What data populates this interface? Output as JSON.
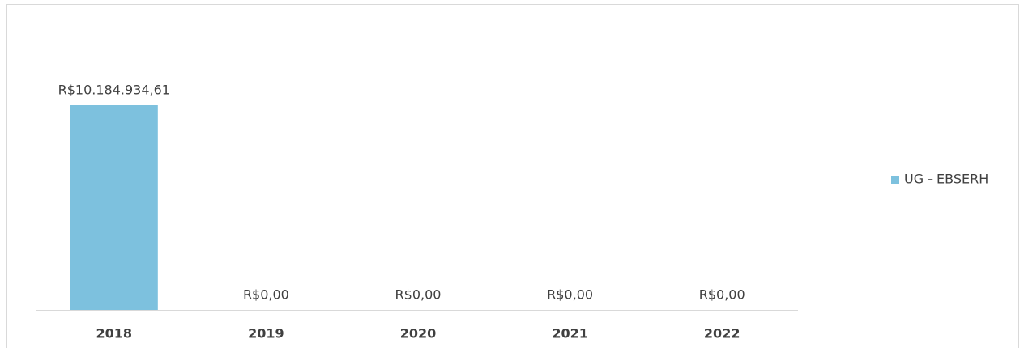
{
  "chart_data": {
    "type": "bar",
    "categories": [
      "2018",
      "2019",
      "2020",
      "2021",
      "2022"
    ],
    "series": [
      {
        "name": "UG - EBSERH",
        "color": "#7dc1de",
        "values": [
          10184934.61,
          0,
          0,
          0,
          0
        ],
        "value_labels": [
          "R$10.184.934,61",
          "R$0,00",
          "R$0,00",
          "R$0,00",
          "R$0,00"
        ]
      }
    ],
    "legend": "right"
  }
}
